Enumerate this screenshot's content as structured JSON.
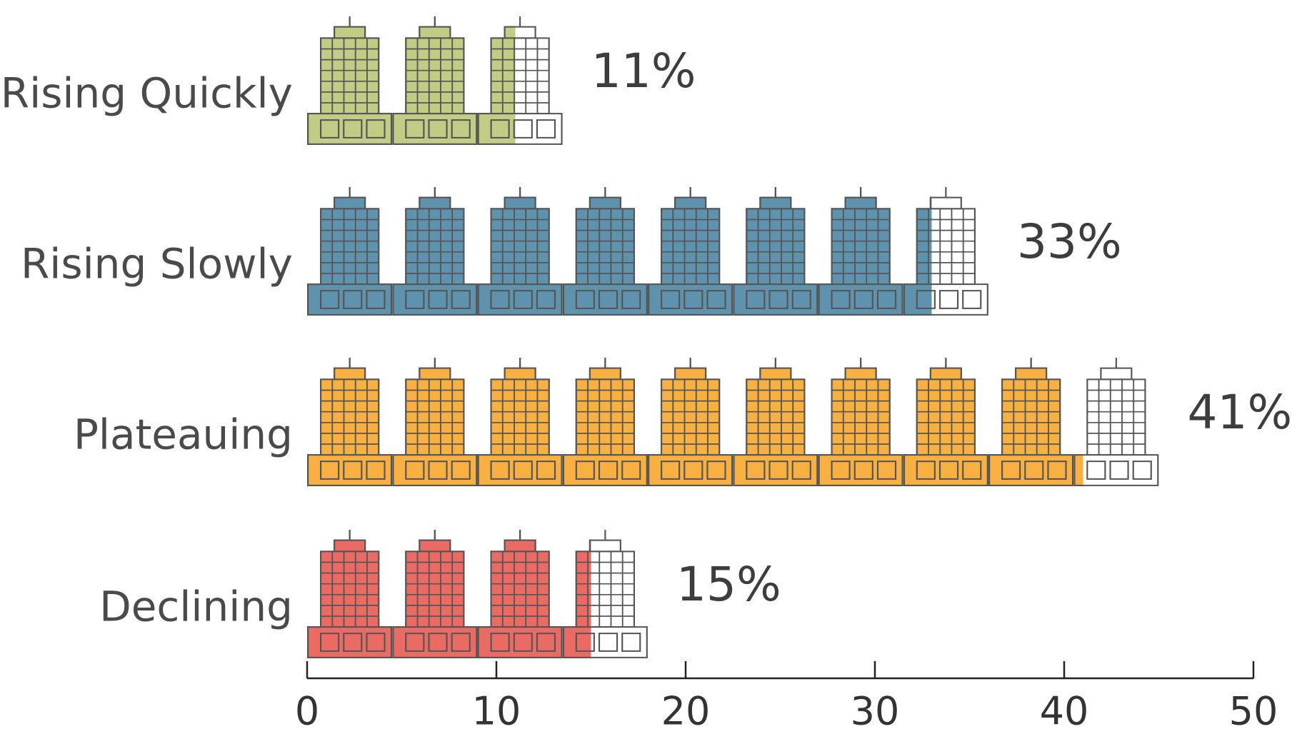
{
  "chart_data": {
    "type": "bar",
    "categories": [
      "Rising Quickly",
      "Rising Slowly",
      "Plateauing",
      "Declining"
    ],
    "values": [
      11,
      33,
      41,
      15
    ],
    "value_labels": [
      "11%",
      "33%",
      "41%",
      "15%"
    ],
    "colors": [
      "#c2cc85",
      "#5f93ad",
      "#f7b041",
      "#ea6b63"
    ],
    "outline_color": "#555555",
    "icon": "office-building-icon",
    "units_per_icon": 4.5,
    "title": "",
    "xlabel": "",
    "ylabel": "",
    "xlim": [
      0,
      50
    ],
    "xticks": [
      0,
      10,
      20,
      30,
      40,
      50
    ],
    "grid": false,
    "legend": "none"
  }
}
